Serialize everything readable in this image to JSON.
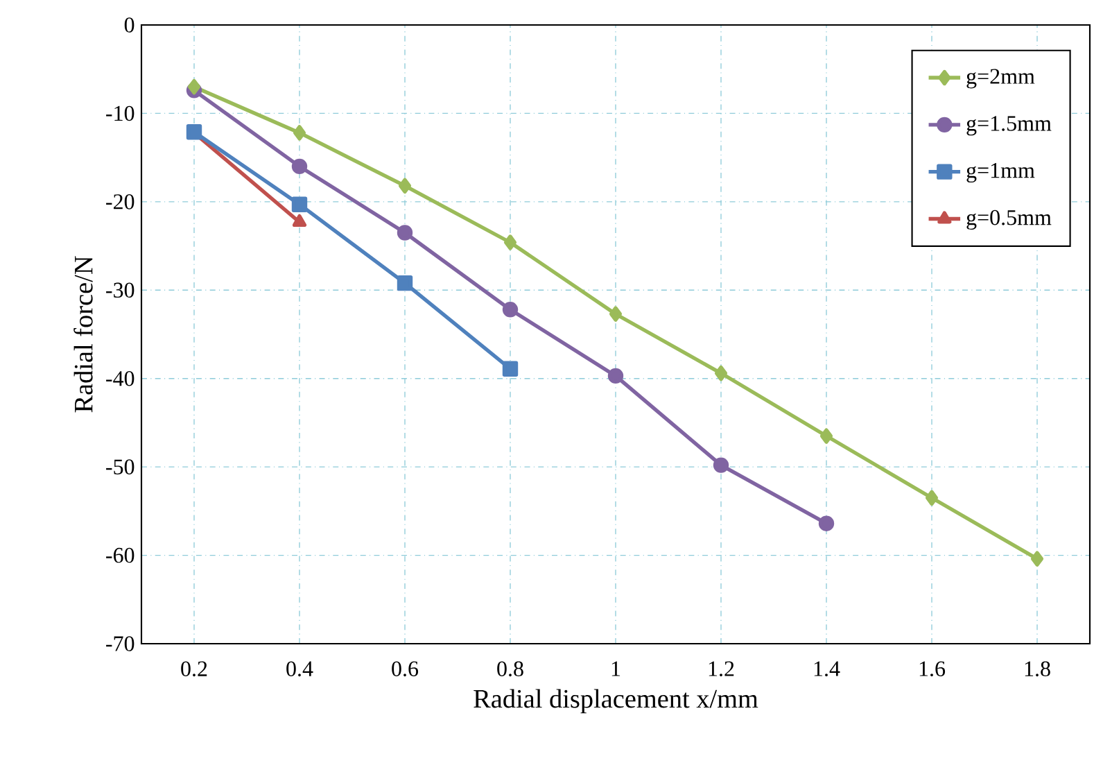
{
  "chart_data": {
    "type": "line",
    "xlabel": "Radial displacement x/mm",
    "ylabel": "Radial force/N",
    "xlim": [
      0.1,
      1.9
    ],
    "xticks": [
      0.2,
      0.4,
      0.6,
      0.8,
      1,
      1.2,
      1.4,
      1.6,
      1.8
    ],
    "ylim": [
      -70,
      0
    ],
    "yticks": [
      -70,
      -60,
      -50,
      -40,
      -30,
      -20,
      -10,
      0
    ],
    "grid": true,
    "legend": "top right",
    "line_style": "solid",
    "series": [
      {
        "name": "g=2mm",
        "color": "#9bbb59",
        "marker": "diamond",
        "x": [
          0.2,
          0.4,
          0.6,
          0.8,
          1.0,
          1.2,
          1.4,
          1.6,
          1.8
        ],
        "values": [
          -7.0,
          -12.2,
          -18.2,
          -24.6,
          -32.7,
          -39.4,
          -46.5,
          -53.5,
          -60.4
        ]
      },
      {
        "name": "g=1.5mm",
        "color": "#8064a2",
        "marker": "circle",
        "x": [
          0.2,
          0.4,
          0.6,
          0.8,
          1.0,
          1.2,
          1.4
        ],
        "values": [
          -7.4,
          -16.0,
          -23.5,
          -32.2,
          -39.7,
          -49.8,
          -56.4
        ]
      },
      {
        "name": "g=1mm",
        "color": "#4f81bd",
        "marker": "square",
        "x": [
          0.2,
          0.4,
          0.6,
          0.8
        ],
        "values": [
          -12.1,
          -20.3,
          -29.2,
          -38.9
        ]
      },
      {
        "name": "g=0.5mm",
        "color": "#c0504d",
        "marker": "triangle",
        "x": [
          0.2,
          0.4
        ],
        "values": [
          -12.2,
          -22.3
        ]
      }
    ]
  }
}
